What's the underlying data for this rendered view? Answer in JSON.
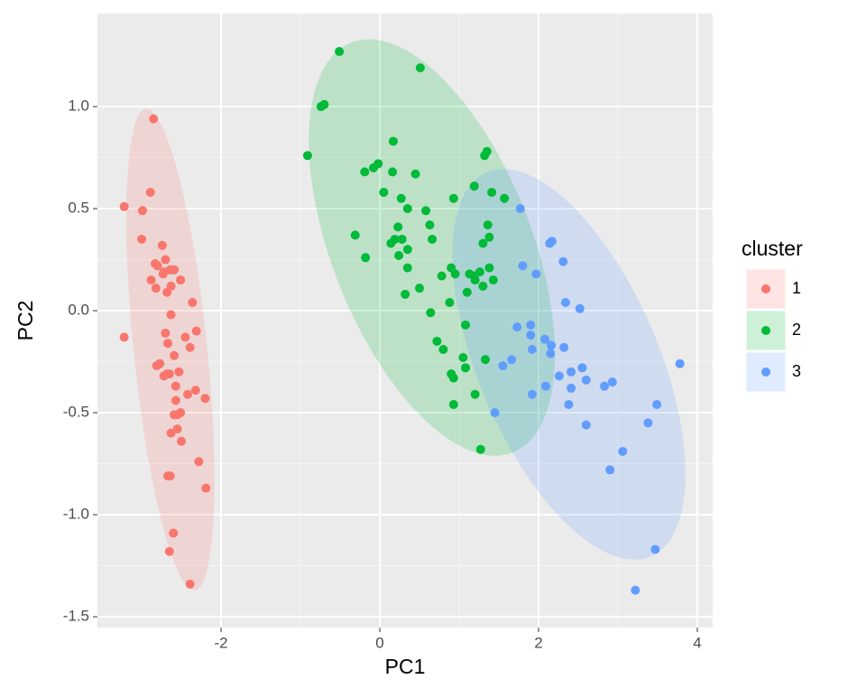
{
  "chart_data": {
    "type": "scatter",
    "x_label": "PC1",
    "y_label": "PC2",
    "legend_title": "cluster",
    "xlim": [
      -3.557,
      4.193
    ],
    "ylim": [
      -1.553,
      1.456
    ],
    "xticks": [
      -2,
      0,
      2,
      4
    ],
    "yticks": [
      {
        "value": 1,
        "label": "1.0"
      },
      0.5,
      {
        "value": 0,
        "label": "0.0"
      },
      -0.5,
      {
        "value": -1,
        "label": "-1.0"
      },
      -1.5
    ],
    "grid": true,
    "legend_position": "right",
    "ellipses": true,
    "series": [
      {
        "name": "1",
        "color": "#F8766D",
        "x": [
          -2.85,
          -3.22,
          -2.99,
          -2.89,
          -3.0,
          -2.74,
          -2.83,
          -2.7,
          -2.8,
          -2.72,
          -2.64,
          -2.59,
          -2.73,
          -2.88,
          -2.51,
          -2.82,
          -2.63,
          -2.68,
          -2.36,
          -2.63,
          -3.22,
          -2.31,
          -2.7,
          -2.45,
          -2.67,
          -2.39,
          -2.59,
          -2.77,
          -2.81,
          -2.68,
          -2.72,
          -2.65,
          -2.53,
          -2.32,
          -2.42,
          -2.2,
          -2.57,
          -2.57,
          -2.51,
          -2.55,
          -2.59,
          -2.55,
          -2.63,
          -2.5,
          -2.28,
          -2.64,
          -2.67,
          -2.19,
          -2.6,
          -2.65,
          -2.39
        ],
        "y": [
          0.94,
          0.51,
          0.49,
          0.58,
          0.35,
          0.32,
          0.23,
          0.25,
          0.22,
          0.19,
          0.2,
          0.2,
          0.18,
          0.15,
          0.15,
          0.11,
          0.12,
          0.09,
          0.04,
          -0.02,
          -0.13,
          -0.1,
          -0.11,
          -0.13,
          -0.16,
          -0.18,
          -0.22,
          -0.26,
          -0.27,
          -0.31,
          -0.32,
          -0.31,
          -0.3,
          -0.39,
          -0.41,
          -0.43,
          -0.37,
          -0.44,
          -0.5,
          -0.51,
          -0.51,
          -0.58,
          -0.6,
          -0.64,
          -0.74,
          -0.81,
          -0.81,
          -0.87,
          -1.09,
          -1.18,
          -1.34
        ]
      },
      {
        "name": "2",
        "color": "#00BA38",
        "x": [
          -0.51,
          0.51,
          -0.7,
          -0.74,
          -0.91,
          0.17,
          1.35,
          1.32,
          -0.19,
          -0.08,
          -0.02,
          0.16,
          0.45,
          0.05,
          0.27,
          0.93,
          1.19,
          1.41,
          0.35,
          0.58,
          0.23,
          1.36,
          1.57,
          0.63,
          -0.31,
          0.66,
          0.19,
          0.28,
          0.14,
          1.38,
          1.3,
          0.35,
          0.24,
          -0.18,
          0.35,
          0.9,
          0.78,
          0.95,
          1.13,
          1.19,
          1.38,
          1.26,
          1.2,
          1.43,
          1.3,
          0.5,
          0.32,
          1.1,
          0.88,
          0.64,
          1.08,
          0.72,
          0.8,
          1.05,
          1.33,
          1.08,
          0.93,
          0.9,
          1.2,
          0.93,
          1.27
        ],
        "y": [
          1.27,
          1.19,
          1.01,
          1.0,
          0.76,
          0.83,
          0.78,
          0.76,
          0.68,
          0.7,
          0.72,
          0.68,
          0.67,
          0.58,
          0.55,
          0.55,
          0.61,
          0.58,
          0.5,
          0.49,
          0.41,
          0.42,
          0.55,
          0.42,
          0.37,
          0.35,
          0.35,
          0.35,
          0.33,
          0.36,
          0.33,
          0.3,
          0.27,
          0.26,
          0.21,
          0.21,
          0.17,
          0.18,
          0.18,
          0.17,
          0.21,
          0.19,
          0.15,
          0.15,
          0.12,
          0.11,
          0.08,
          0.09,
          0.04,
          -0.01,
          -0.07,
          -0.15,
          -0.19,
          -0.23,
          -0.24,
          -0.28,
          -0.33,
          -0.31,
          -0.41,
          -0.46,
          -0.68
        ]
      },
      {
        "name": "3",
        "color": "#619CFF",
        "x": [
          1.77,
          1.8,
          1.97,
          2.14,
          2.17,
          2.31,
          2.34,
          2.52,
          1.73,
          1.9,
          1.9,
          1.92,
          2.08,
          2.16,
          2.32,
          2.15,
          1.66,
          1.55,
          2.41,
          2.55,
          2.26,
          2.6,
          2.09,
          1.92,
          2.41,
          2.38,
          2.83,
          2.93,
          3.78,
          3.49,
          1.45,
          2.6,
          3.38,
          3.06,
          2.9,
          3.47,
          3.22
        ],
        "y": [
          0.5,
          0.22,
          0.18,
          0.33,
          0.34,
          0.24,
          0.04,
          0.01,
          -0.08,
          -0.07,
          -0.12,
          -0.19,
          -0.14,
          -0.17,
          -0.18,
          -0.21,
          -0.24,
          -0.27,
          -0.3,
          -0.28,
          -0.32,
          -0.34,
          -0.37,
          -0.41,
          -0.38,
          -0.46,
          -0.37,
          -0.35,
          -0.26,
          -0.46,
          -0.5,
          -0.56,
          -0.55,
          -0.69,
          -0.78,
          -1.17,
          -1.37
        ]
      }
    ]
  }
}
